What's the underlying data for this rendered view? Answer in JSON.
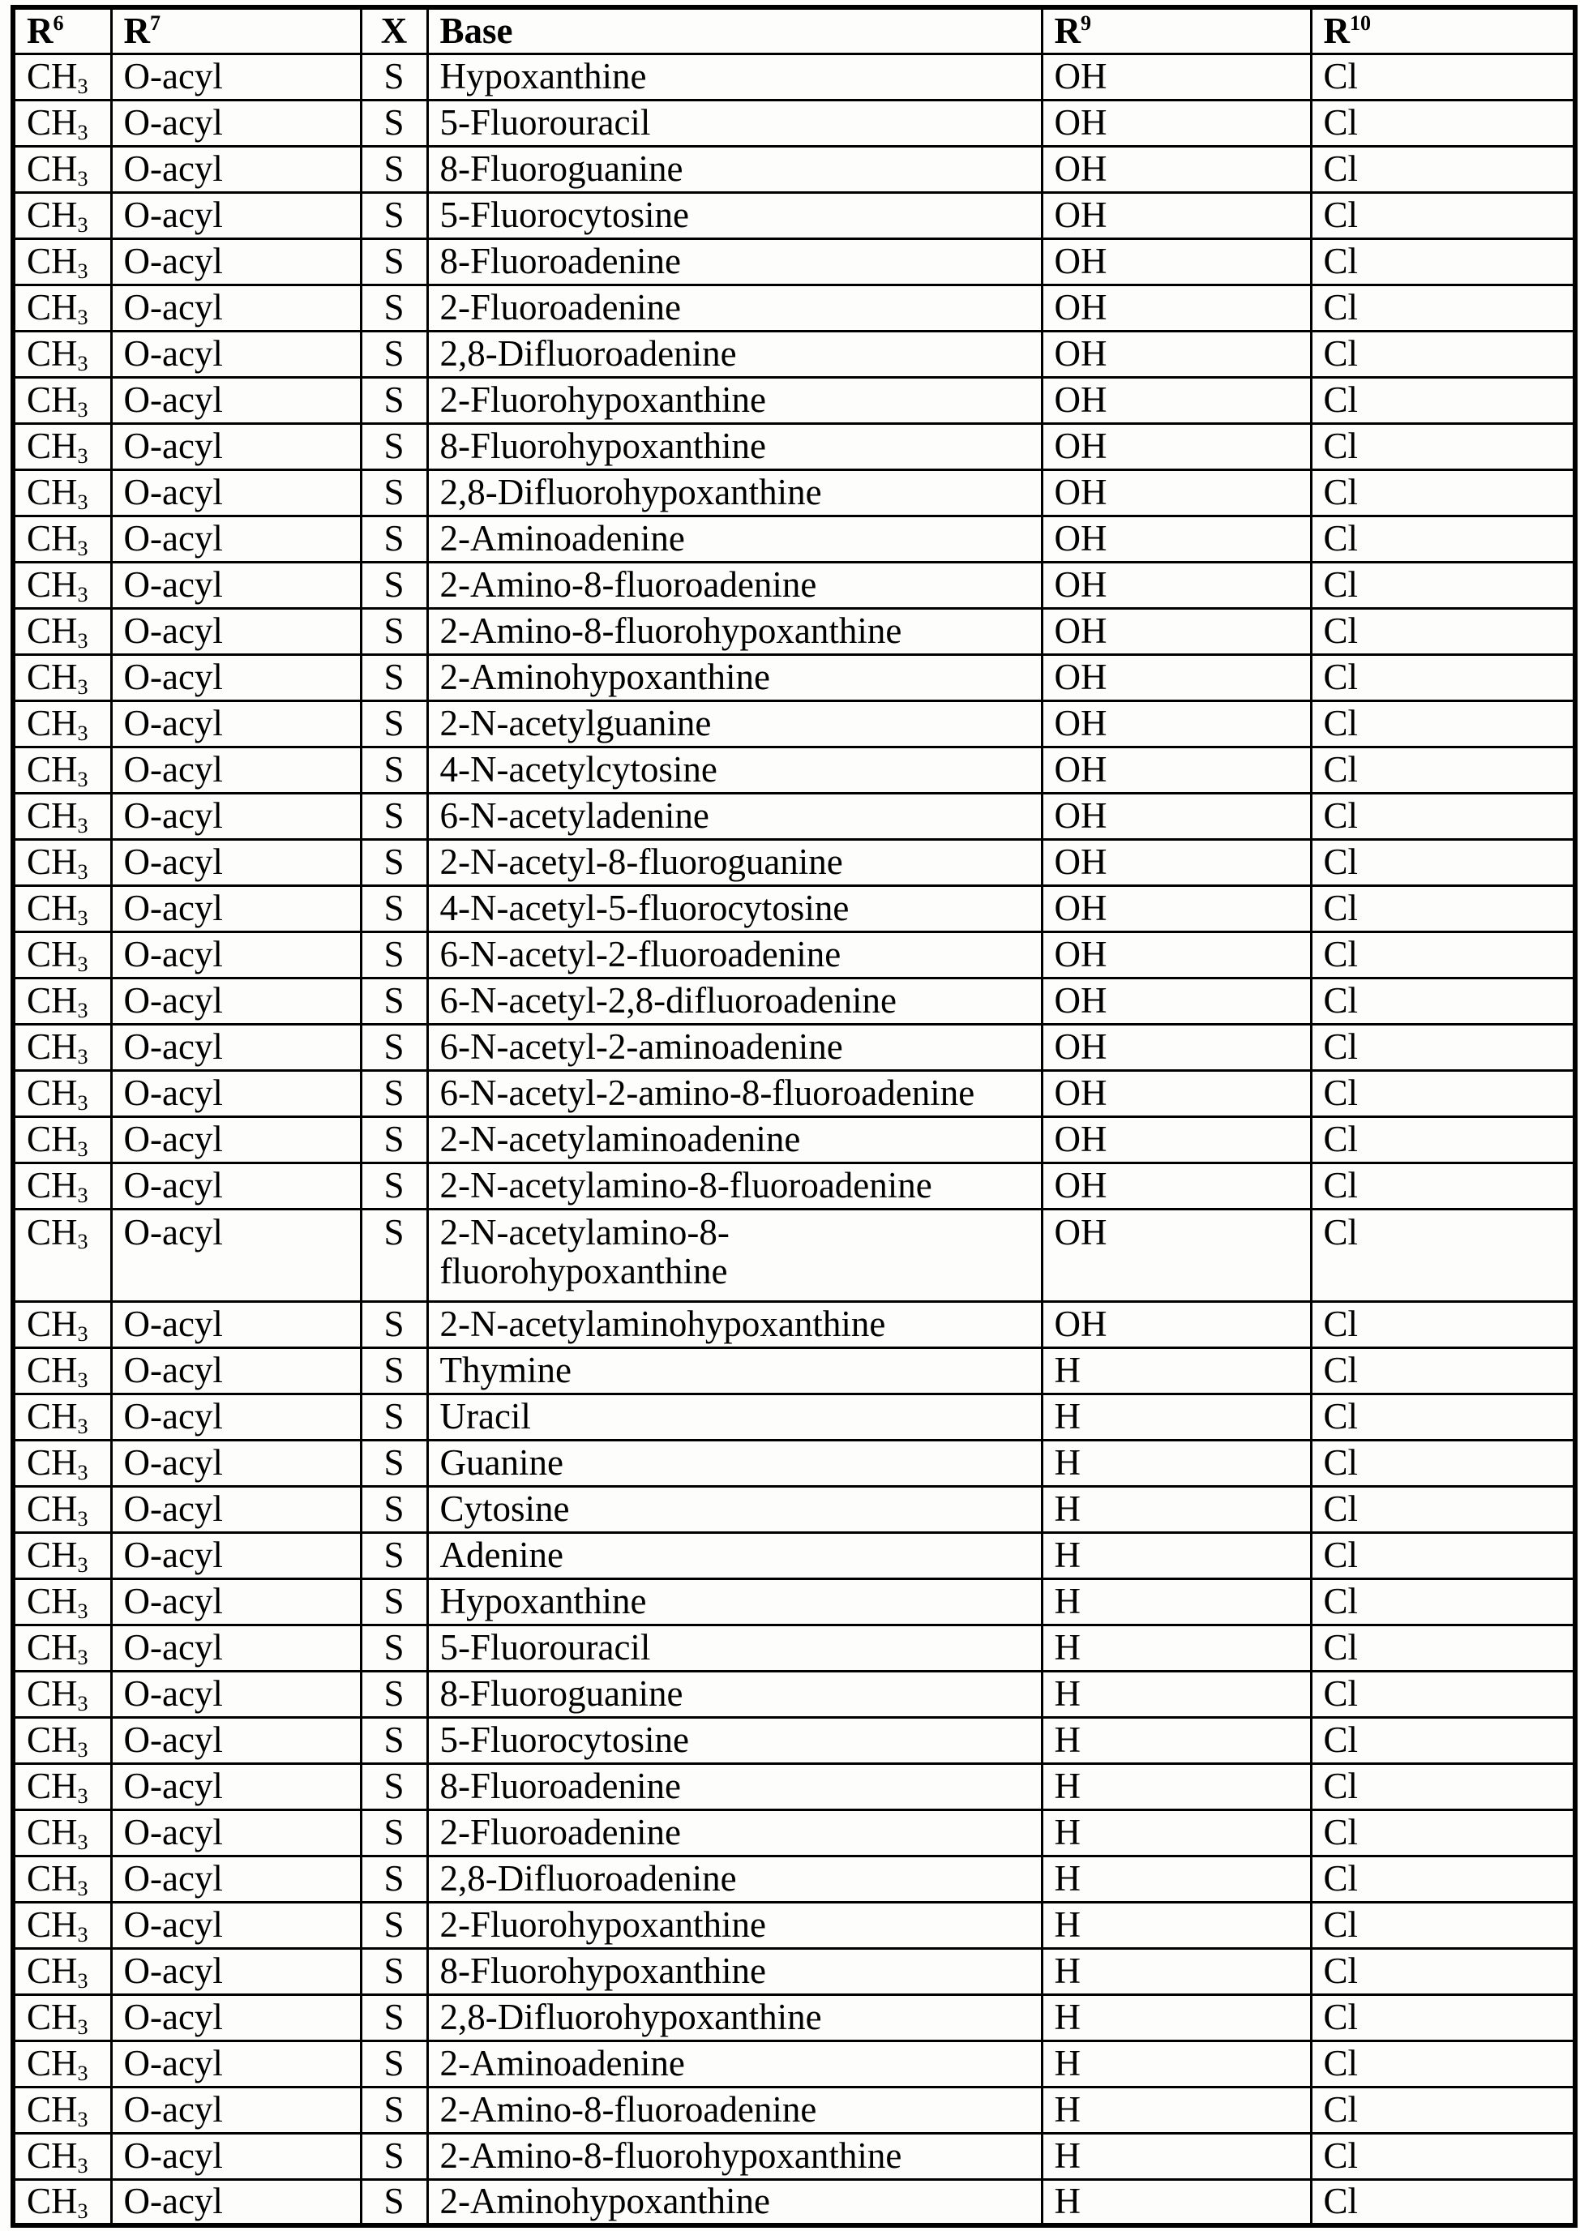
{
  "table": {
    "headers": [
      {
        "label": "R",
        "sup": "6"
      },
      {
        "label": "R",
        "sup": "7"
      },
      {
        "label": "X",
        "sup": ""
      },
      {
        "label": "Base",
        "sup": ""
      },
      {
        "label": "R",
        "sup": "9"
      },
      {
        "label": "R",
        "sup": "10"
      }
    ],
    "row_defaults": {
      "r6": "CH",
      "r6_sub": "3",
      "r7": "O-acyl",
      "x": "S",
      "r10": "Cl"
    },
    "rows": [
      {
        "base": "Hypoxanthine",
        "base2": "",
        "r9": "OH"
      },
      {
        "base": "5-Fluorouracil",
        "base2": "",
        "r9": "OH"
      },
      {
        "base": "8-Fluoroguanine",
        "base2": "",
        "r9": "OH"
      },
      {
        "base": "5-Fluorocytosine",
        "base2": "",
        "r9": "OH"
      },
      {
        "base": "8-Fluoroadenine",
        "base2": "",
        "r9": "OH"
      },
      {
        "base": "2-Fluoroadenine",
        "base2": "",
        "r9": "OH"
      },
      {
        "base": "2,8-Difluoroadenine",
        "base2": "",
        "r9": "OH"
      },
      {
        "base": "2-Fluorohypoxanthine",
        "base2": "",
        "r9": "OH"
      },
      {
        "base": "8-Fluorohypoxanthine",
        "base2": "",
        "r9": "OH"
      },
      {
        "base": "2,8-Difluorohypoxanthine",
        "base2": "",
        "r9": "OH"
      },
      {
        "base": "2-Aminoadenine",
        "base2": "",
        "r9": "OH"
      },
      {
        "base": "2-Amino-8-fluoroadenine",
        "base2": "",
        "r9": "OH"
      },
      {
        "base": "2-Amino-8-fluorohypoxanthine",
        "base2": "",
        "r9": "OH"
      },
      {
        "base": "2-Aminohypoxanthine",
        "base2": "",
        "r9": "OH"
      },
      {
        "base": "2-N-acetylguanine",
        "base2": "",
        "r9": "OH"
      },
      {
        "base": "4-N-acetylcytosine",
        "base2": "",
        "r9": "OH"
      },
      {
        "base": "6-N-acetyladenine",
        "base2": "",
        "r9": "OH"
      },
      {
        "base": "2-N-acetyl-8-fluoroguanine",
        "base2": "",
        "r9": "OH"
      },
      {
        "base": "4-N-acetyl-5-fluorocytosine",
        "base2": "",
        "r9": "OH"
      },
      {
        "base": "6-N-acetyl-2-fluoroadenine",
        "base2": "",
        "r9": "OH"
      },
      {
        "base": "6-N-acetyl-2,8-difluoroadenine",
        "base2": "",
        "r9": "OH"
      },
      {
        "base": "6-N-acetyl-2-aminoadenine",
        "base2": "",
        "r9": "OH"
      },
      {
        "base": "6-N-acetyl-2-amino-8-fluoroadenine",
        "base2": "",
        "r9": "OH"
      },
      {
        "base": "2-N-acetylaminoadenine",
        "base2": "",
        "r9": "OH"
      },
      {
        "base": "2-N-acetylamino-8-fluoroadenine",
        "base2": "",
        "r9": "OH"
      },
      {
        "base": "2-N-acetylamino-8-",
        "base2": "fluorohypoxanthine",
        "r9": "OH"
      },
      {
        "base": "2-N-acetylaminohypoxanthine",
        "base2": "",
        "r9": "OH"
      },
      {
        "base": "Thymine",
        "base2": "",
        "r9": "H"
      },
      {
        "base": "Uracil",
        "base2": "",
        "r9": "H"
      },
      {
        "base": "Guanine",
        "base2": "",
        "r9": "H"
      },
      {
        "base": "Cytosine",
        "base2": "",
        "r9": "H"
      },
      {
        "base": "Adenine",
        "base2": "",
        "r9": "H"
      },
      {
        "base": "Hypoxanthine",
        "base2": "",
        "r9": "H"
      },
      {
        "base": "5-Fluorouracil",
        "base2": "",
        "r9": "H"
      },
      {
        "base": "8-Fluoroguanine",
        "base2": "",
        "r9": "H"
      },
      {
        "base": "5-Fluorocytosine",
        "base2": "",
        "r9": "H"
      },
      {
        "base": "8-Fluoroadenine",
        "base2": "",
        "r9": "H"
      },
      {
        "base": "2-Fluoroadenine",
        "base2": "",
        "r9": "H"
      },
      {
        "base": "2,8-Difluoroadenine",
        "base2": "",
        "r9": "H"
      },
      {
        "base": "2-Fluorohypoxanthine",
        "base2": "",
        "r9": "H"
      },
      {
        "base": "8-Fluorohypoxanthine",
        "base2": "",
        "r9": "H"
      },
      {
        "base": "2,8-Difluorohypoxanthine",
        "base2": "",
        "r9": "H"
      },
      {
        "base": "2-Aminoadenine",
        "base2": "",
        "r9": "H"
      },
      {
        "base": "2-Amino-8-fluoroadenine",
        "base2": "",
        "r9": "H"
      },
      {
        "base": "2-Amino-8-fluorohypoxanthine",
        "base2": "",
        "r9": "H"
      },
      {
        "base": "2-Aminohypoxanthine",
        "base2": "",
        "r9": "H"
      }
    ]
  }
}
